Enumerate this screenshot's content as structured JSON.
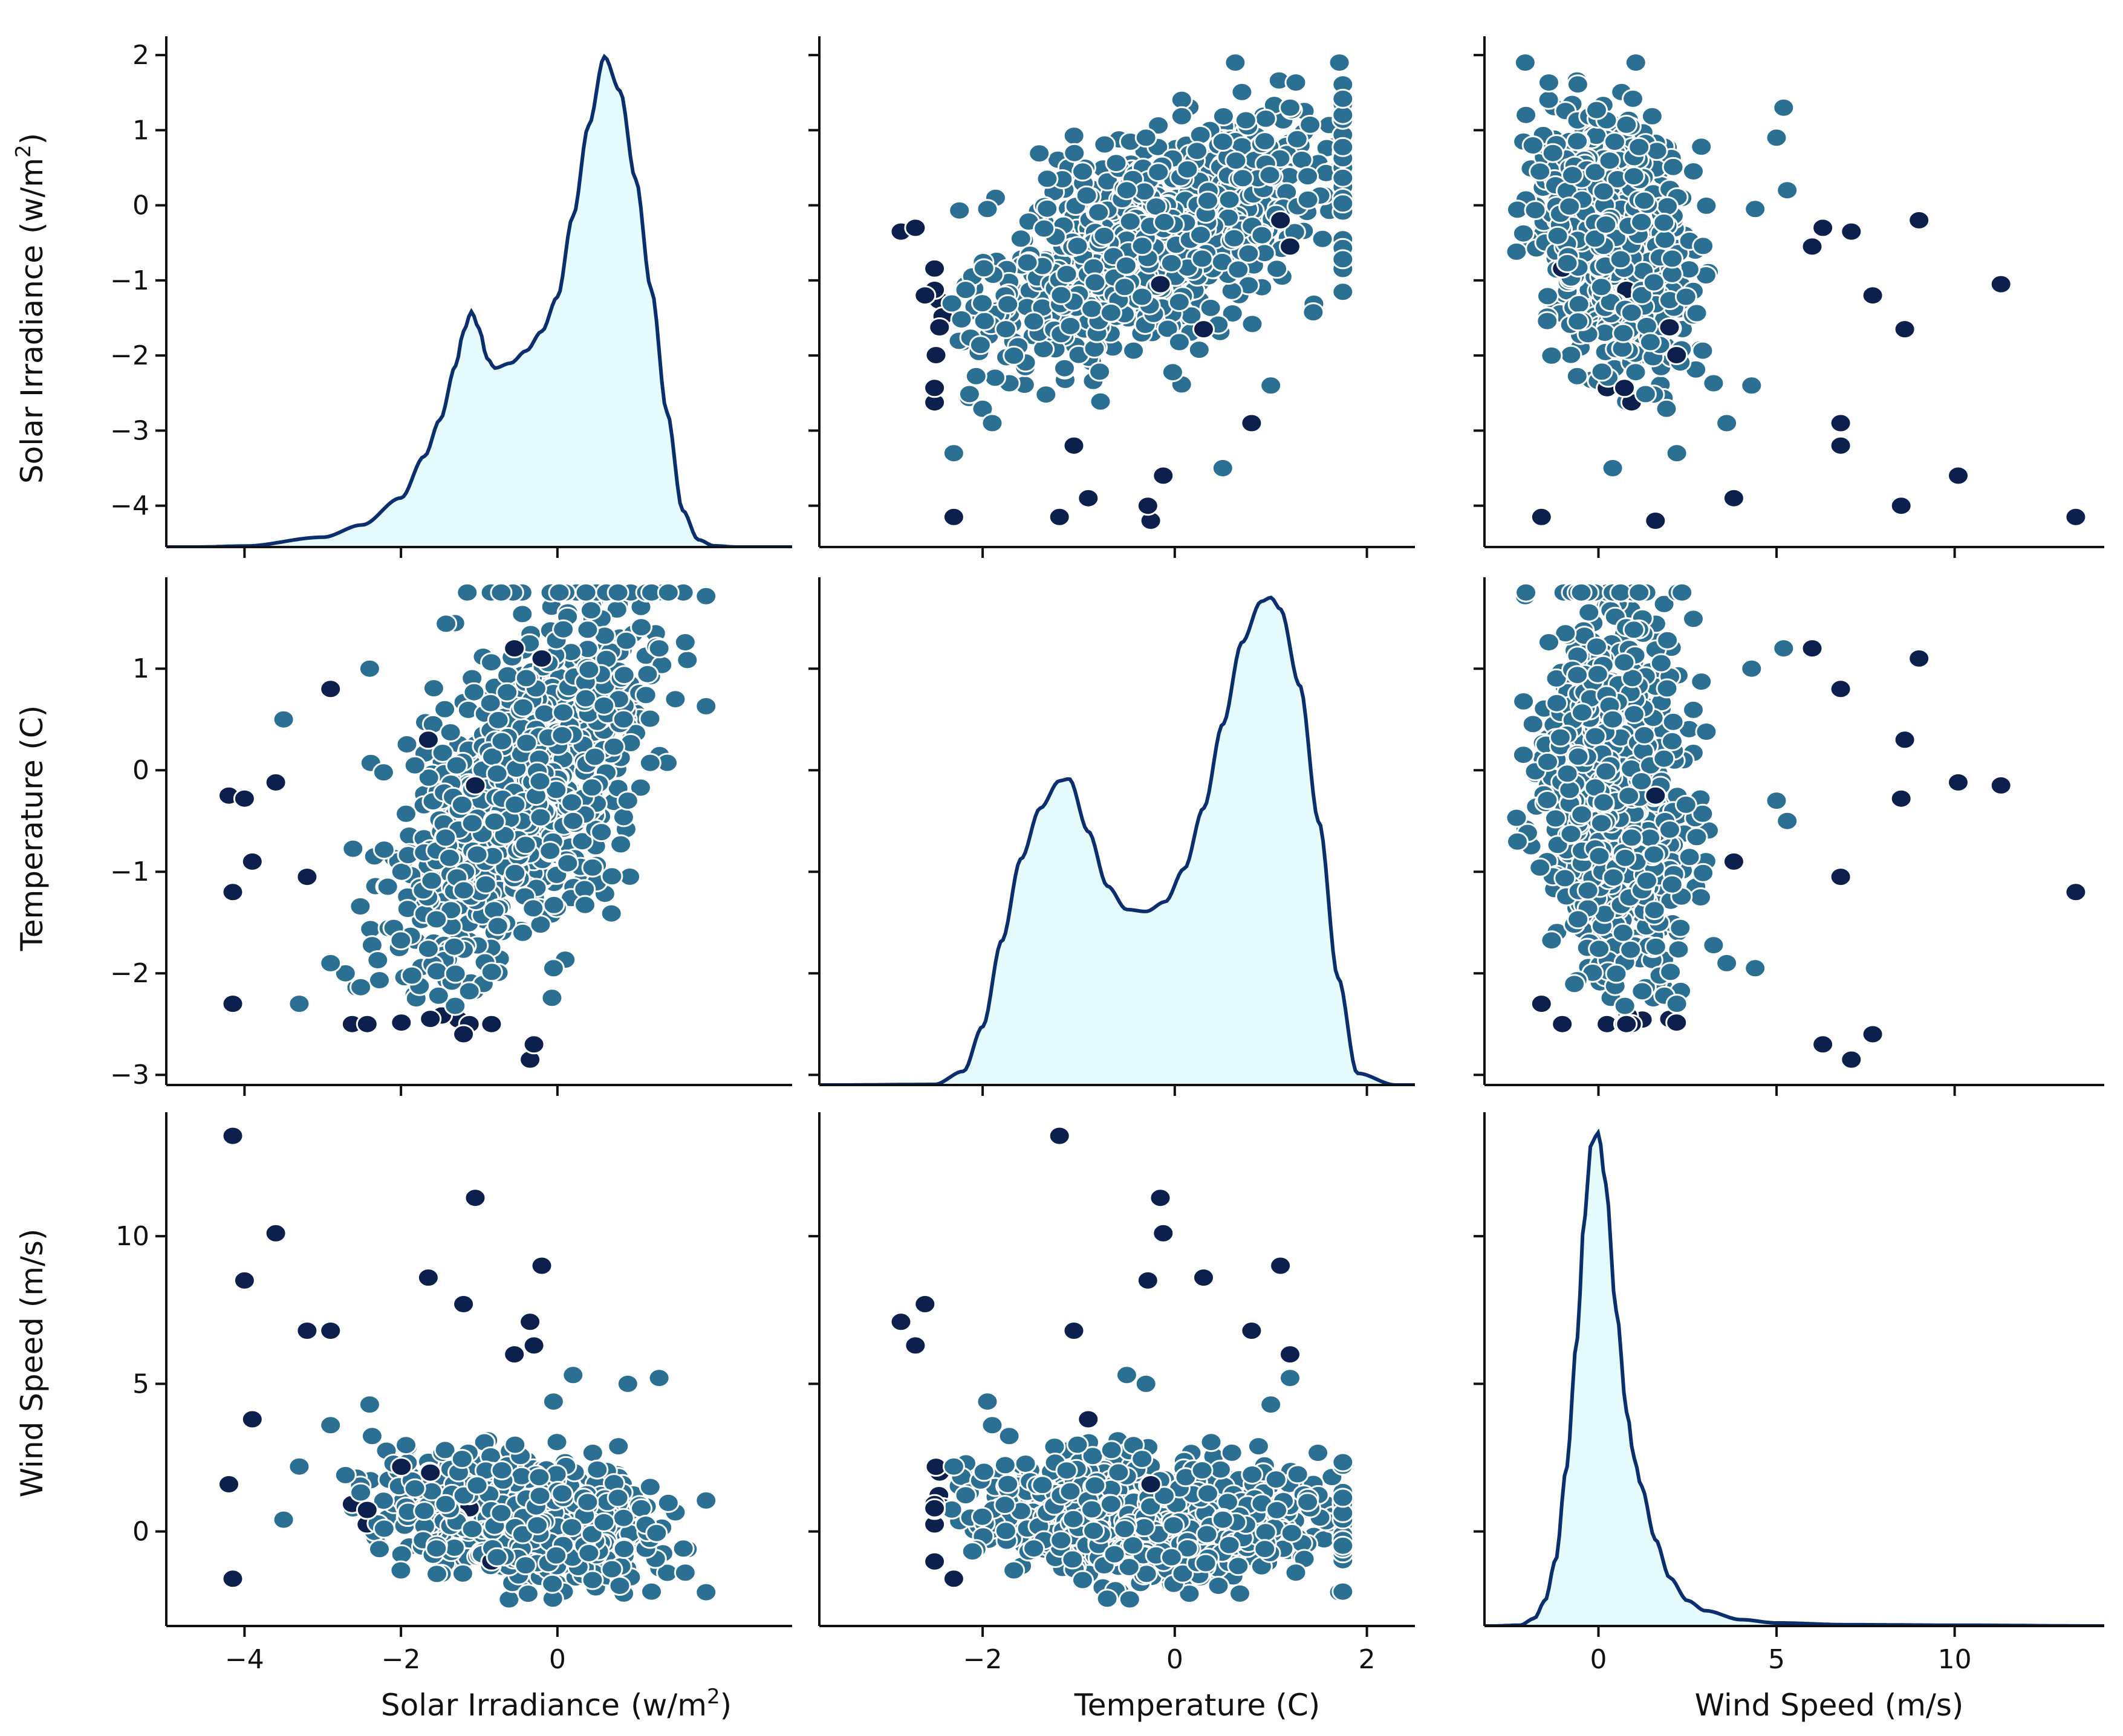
{
  "chart_data": {
    "type": "pairplot",
    "title": "",
    "variables": [
      {
        "name": "Solar Irradiance",
        "label_main": "Solar Irradiance",
        "label_unit": "(w/m",
        "label_sup": "2",
        "label_close": ")",
        "ticks": [
          -4,
          -3,
          -2,
          -1,
          0,
          1,
          2
        ],
        "lim": [
          -4.55,
          2.25
        ]
      },
      {
        "name": "Temperature",
        "label_main": "Temperature (C)",
        "label_unit": "",
        "label_sup": "",
        "label_close": "",
        "ticks": [
          -3,
          -2,
          -1,
          0,
          1
        ],
        "lim": [
          -3.1,
          1.9
        ]
      },
      {
        "name": "Wind Speed",
        "label_main": "Wind Speed (m/s)",
        "label_unit": "",
        "label_sup": "",
        "label_close": "",
        "ticks": [
          0,
          5,
          10
        ],
        "lim": [
          -3.2,
          14.2
        ]
      }
    ],
    "x_axis_overrides": [
      {
        "ticks": [
          -4,
          -2,
          0
        ],
        "lim": [
          -5.0,
          3.0
        ]
      },
      {
        "ticks": [
          -2,
          0,
          2
        ],
        "lim": [
          -3.7,
          2.5
        ]
      },
      {
        "ticks": [
          0,
          5,
          10
        ],
        "lim": [
          -3.2,
          14.2
        ]
      }
    ],
    "kde": [
      {
        "variable": "Solar Irradiance",
        "x": [
          -4.6,
          -4.0,
          -3.0,
          -2.5,
          -2.0,
          -1.7,
          -1.5,
          -1.3,
          -1.2,
          -1.1,
          -1.0,
          -0.9,
          -0.8,
          -0.6,
          -0.4,
          -0.2,
          0.0,
          0.2,
          0.4,
          0.6,
          0.8,
          1.0,
          1.2,
          1.4,
          1.6,
          1.8,
          2.0,
          2.3
        ],
        "density": [
          0.0,
          0.004,
          0.04,
          0.09,
          0.2,
          0.37,
          0.52,
          0.74,
          0.88,
          0.96,
          0.89,
          0.77,
          0.73,
          0.75,
          0.8,
          0.88,
          1.02,
          1.35,
          1.72,
          2.0,
          1.86,
          1.5,
          1.05,
          0.55,
          0.15,
          0.03,
          0.005,
          0.0
        ]
      },
      {
        "variable": "Temperature",
        "x": [
          -3.5,
          -2.5,
          -2.2,
          -2.0,
          -1.8,
          -1.6,
          -1.4,
          -1.2,
          -1.1,
          -0.9,
          -0.7,
          -0.5,
          -0.3,
          -0.1,
          0.1,
          0.3,
          0.5,
          0.7,
          0.9,
          1.0,
          1.1,
          1.3,
          1.5,
          1.7,
          1.9,
          2.3
        ],
        "density": [
          0.0,
          0.003,
          0.07,
          0.3,
          0.74,
          1.16,
          1.42,
          1.56,
          1.57,
          1.3,
          1.02,
          0.9,
          0.89,
          0.94,
          1.11,
          1.42,
          1.85,
          2.27,
          2.48,
          2.5,
          2.44,
          2.05,
          1.35,
          0.55,
          0.06,
          0.0
        ]
      },
      {
        "variable": "Wind Speed",
        "x": [
          -3.0,
          -2.2,
          -1.8,
          -1.5,
          -1.2,
          -0.9,
          -0.6,
          -0.4,
          -0.2,
          0.0,
          0.2,
          0.5,
          0.8,
          1.0,
          1.2,
          1.6,
          2.0,
          2.5,
          3.0,
          4.0,
          5.0,
          7.0,
          10.0,
          14.0
        ],
        "density": [
          0.0,
          0.003,
          0.03,
          0.1,
          0.26,
          0.62,
          1.13,
          1.6,
          1.9,
          1.94,
          1.74,
          1.24,
          0.84,
          0.66,
          0.55,
          0.34,
          0.19,
          0.1,
          0.06,
          0.025,
          0.012,
          0.005,
          0.003,
          0.0
        ]
      }
    ],
    "scatter_clusters": [
      {
        "name": "Solar Irradiance",
        "mean": -0.45,
        "sd": 0.8
      },
      {
        "name": "Temperature",
        "mean": -0.2,
        "sd": 0.95
      },
      {
        "name": "Wind Speed",
        "mean": 0.45,
        "sd": 1.05
      }
    ],
    "outliers": [
      {
        "solar": -4.15,
        "temp": -1.2,
        "wind": 13.4
      },
      {
        "solar": -4.2,
        "temp": -0.25,
        "wind": 1.6
      },
      {
        "solar": -4.15,
        "temp": -2.3,
        "wind": -1.6
      },
      {
        "solar": -4.0,
        "temp": -0.28,
        "wind": 8.5
      },
      {
        "solar": -3.6,
        "temp": -0.12,
        "wind": 10.1
      },
      {
        "solar": -3.2,
        "temp": -1.05,
        "wind": 6.8
      },
      {
        "solar": -2.9,
        "temp": 0.8,
        "wind": 6.8
      },
      {
        "solar": -1.65,
        "temp": 0.3,
        "wind": 8.6
      },
      {
        "solar": -1.2,
        "temp": -2.6,
        "wind": 7.7
      },
      {
        "solar": -1.05,
        "temp": -0.15,
        "wind": 11.3
      },
      {
        "solar": -0.35,
        "temp": -2.85,
        "wind": 7.1
      },
      {
        "solar": -0.3,
        "temp": -2.7,
        "wind": 6.3
      },
      {
        "solar": -0.55,
        "temp": 1.2,
        "wind": 6.0
      },
      {
        "solar": -0.2,
        "temp": 1.1,
        "wind": 9.0
      },
      {
        "solar": 0.2,
        "temp": -0.5,
        "wind": 5.3
      },
      {
        "solar": 1.3,
        "temp": 1.2,
        "wind": 5.2
      },
      {
        "solar": -2.9,
        "temp": -1.9,
        "wind": 3.6
      },
      {
        "solar": -3.9,
        "temp": -0.9,
        "wind": 3.8
      },
      {
        "solar": -3.3,
        "temp": -2.3,
        "wind": 2.2
      },
      {
        "solar": -3.5,
        "temp": 0.5,
        "wind": 0.4
      },
      {
        "solar": -2.4,
        "temp": 1.0,
        "wind": 4.3
      },
      {
        "solar": 0.9,
        "temp": -0.3,
        "wind": 5.0
      },
      {
        "solar": -0.05,
        "temp": -1.95,
        "wind": 4.4
      }
    ]
  }
}
